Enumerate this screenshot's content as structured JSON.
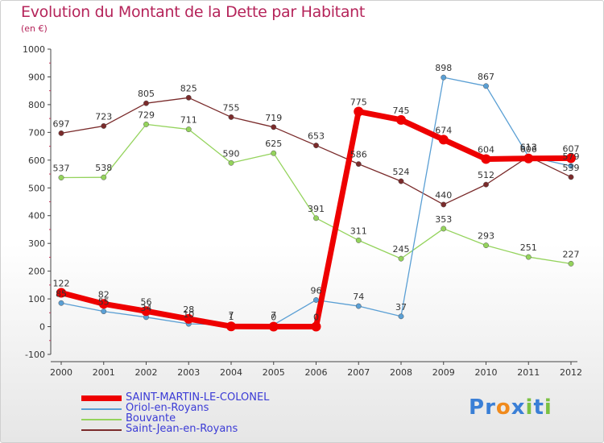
{
  "title": "Evolution du Montant de la Dette par Habitant",
  "unit": "(en €)",
  "logo": {
    "text": "Proxiti",
    "letters": [
      "P",
      "r",
      "o",
      "x",
      "i",
      "t",
      "i"
    ],
    "colors": [
      "#3a7fd6",
      "#3a7fd6",
      "#f08a1c",
      "#3a7fd6",
      "#7bc142",
      "#3a7fd6",
      "#7bc142"
    ]
  },
  "chart_data": {
    "type": "line",
    "x": [
      "2000",
      "2001",
      "2002",
      "2003",
      "2004",
      "2005",
      "2006",
      "2007",
      "2008",
      "2009",
      "2010",
      "2011",
      "2012"
    ],
    "ylim": [
      -100,
      1000
    ],
    "yticks": [
      -100,
      0,
      100,
      200,
      300,
      400,
      500,
      600,
      700,
      800,
      900,
      1000
    ],
    "grid": false,
    "legend_placement": "bottom-left",
    "series": [
      {
        "name": "SAINT-MARTIN-LE-COLONEL",
        "color": "#ee0000",
        "width": 7,
        "values": [
          122,
          82,
          56,
          28,
          1,
          0,
          0,
          775,
          745,
          674,
          604,
          606,
          607
        ]
      },
      {
        "name": "Oriol-en-Royans",
        "color": "#5a9fd4",
        "width": 1.3,
        "values": [
          85,
          55,
          34,
          10,
          7,
          7,
          96,
          74,
          37,
          898,
          867,
          613,
          579
        ]
      },
      {
        "name": "Bouvante",
        "color": "#94d35c",
        "width": 1.3,
        "values": [
          537,
          538,
          729,
          711,
          590,
          625,
          391,
          311,
          245,
          353,
          293,
          251,
          227
        ]
      },
      {
        "name": "Saint-Jean-en-Royans",
        "color": "#7a2b2b",
        "width": 1.3,
        "values": [
          697,
          723,
          805,
          825,
          755,
          719,
          653,
          586,
          524,
          440,
          512,
          613,
          539
        ]
      }
    ]
  }
}
